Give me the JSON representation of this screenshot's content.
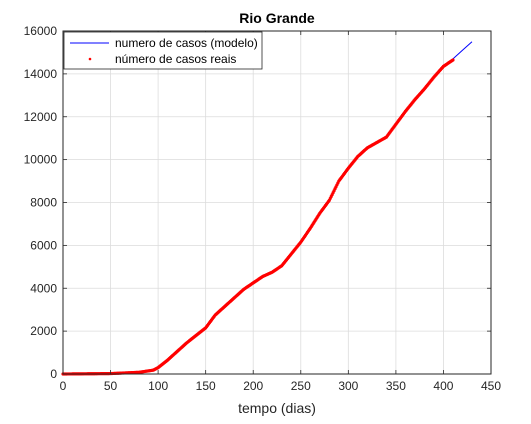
{
  "chart_data": {
    "type": "line",
    "title": "Rio Grande",
    "xlabel": "tempo (dias)",
    "ylabel": "",
    "xlim": [
      0,
      450
    ],
    "ylim": [
      0,
      16000
    ],
    "xticks": [
      0,
      50,
      100,
      150,
      200,
      250,
      300,
      350,
      400,
      450
    ],
    "yticks": [
      0,
      2000,
      4000,
      6000,
      8000,
      10000,
      12000,
      14000,
      16000
    ],
    "grid": true,
    "legend": {
      "placement": "top-left"
    },
    "series": [
      {
        "name": "numero de casos (modelo)",
        "style": "line",
        "color": "#0000ff",
        "x": [
          0,
          50,
          80,
          95,
          100,
          110,
          120,
          130,
          140,
          150,
          160,
          170,
          180,
          190,
          200,
          210,
          220,
          230,
          240,
          250,
          260,
          270,
          280,
          290,
          300,
          310,
          320,
          330,
          340,
          350,
          360,
          370,
          380,
          390,
          400,
          410,
          420,
          430
        ],
        "y": [
          0,
          20,
          80,
          180,
          300,
          650,
          1050,
          1450,
          1800,
          2150,
          2750,
          3150,
          3550,
          3950,
          4250,
          4550,
          4750,
          5050,
          5600,
          6150,
          6800,
          7500,
          8100,
          9000,
          9600,
          10150,
          10550,
          10800,
          11050,
          11650,
          12250,
          12800,
          13300,
          13850,
          14350,
          14700,
          15100,
          15500
        ]
      },
      {
        "name": "número de casos reais",
        "style": "points",
        "color": "#ff0000",
        "x": [
          0,
          50,
          80,
          95,
          100,
          110,
          120,
          130,
          140,
          150,
          160,
          170,
          180,
          190,
          200,
          210,
          220,
          230,
          240,
          250,
          260,
          270,
          280,
          290,
          300,
          310,
          320,
          330,
          340,
          350,
          360,
          370,
          380,
          390,
          400,
          410
        ],
        "y": [
          0,
          20,
          80,
          180,
          300,
          650,
          1050,
          1450,
          1800,
          2150,
          2750,
          3150,
          3550,
          3950,
          4250,
          4550,
          4750,
          5050,
          5600,
          6150,
          6800,
          7500,
          8100,
          9000,
          9600,
          10150,
          10550,
          10800,
          11050,
          11650,
          12250,
          12800,
          13300,
          13850,
          14350,
          14650
        ]
      }
    ]
  }
}
